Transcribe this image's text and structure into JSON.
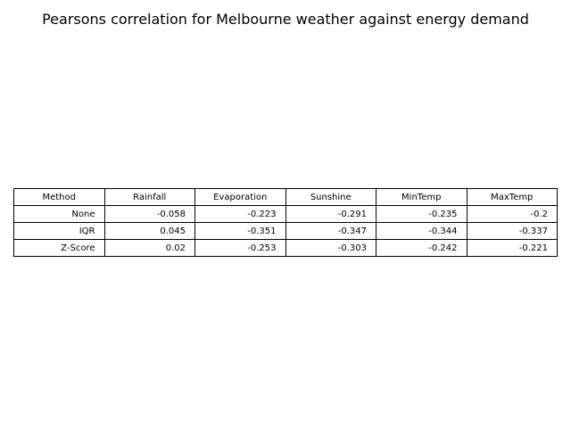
{
  "chart_data": {
    "type": "table",
    "title": "Pearsons correlation for Melbourne weather against energy demand",
    "columns": [
      "Method",
      "Rainfall",
      "Evaporation",
      "Sunshine",
      "MinTemp",
      "MaxTemp"
    ],
    "rows": [
      [
        "None",
        "-0.058",
        "-0.223",
        "-0.291",
        "-0.235",
        "-0.2"
      ],
      [
        "IQR",
        "0.045",
        "-0.351",
        "-0.347",
        "-0.344",
        "-0.337"
      ],
      [
        "Z-Score",
        "0.02",
        "-0.253",
        "-0.303",
        "-0.242",
        "-0.221"
      ]
    ]
  }
}
